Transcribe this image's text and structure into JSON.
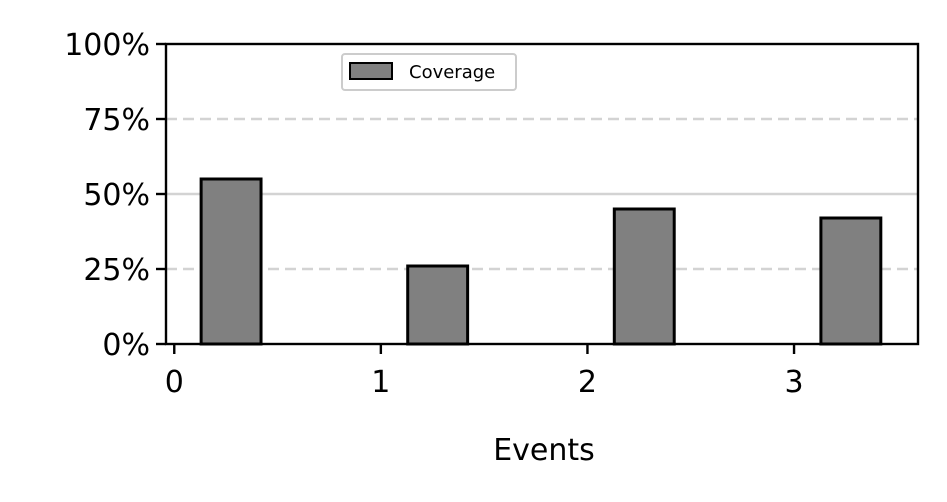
{
  "chart_data": {
    "type": "bar",
    "title": "",
    "xlabel": "Events",
    "ylabel": "",
    "x": [
      0.275,
      1.275,
      2.275,
      3.275
    ],
    "values": [
      0.55,
      0.26,
      0.45,
      0.42
    ],
    "series": [
      {
        "name": "Coverage",
        "x": [
          0.275,
          1.275,
          2.275,
          3.275
        ],
        "values": [
          0.55,
          0.26,
          0.45,
          0.42
        ],
        "color": "#808080",
        "edge_color": "#000000"
      }
    ],
    "bar_width_data_units": 0.29,
    "xlim": [
      -0.04,
      3.6
    ],
    "ylim": [
      0,
      1.0
    ],
    "x_ticks": [
      0,
      1,
      2,
      3
    ],
    "x_tick_labels": [
      "0",
      "1",
      "2",
      "3"
    ],
    "y_ticks": [
      0,
      0.25,
      0.5,
      0.75,
      1.0
    ],
    "y_tick_labels": [
      "0%",
      "25%",
      "50%",
      "75%",
      "100%"
    ],
    "y_format": "percent",
    "grid": {
      "axis": "y",
      "values": [
        0.25,
        0.5,
        0.75
      ],
      "dashed_values": [
        0.25,
        0.75
      ],
      "solid_values": [
        0.5
      ],
      "color": "#d3d3d3"
    },
    "legend": {
      "position": "top-center",
      "entries": [
        "Coverage"
      ]
    }
  }
}
